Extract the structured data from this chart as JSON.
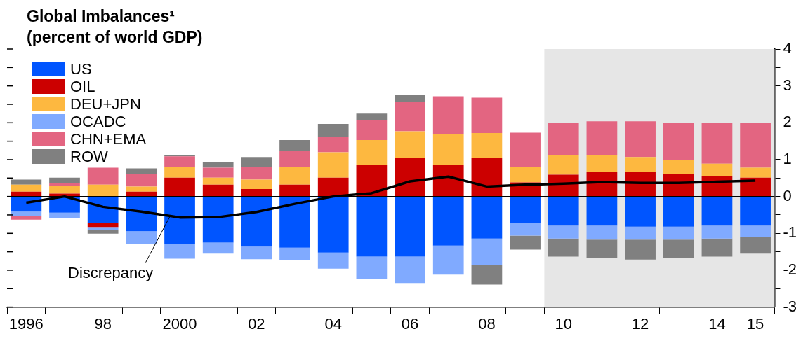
{
  "chart_data": {
    "type": "bar",
    "title": "Global Imbalances¹",
    "subtitle": "(percent of world GDP)",
    "categories": [
      "1996",
      null,
      "98",
      null,
      "2000",
      null,
      "02",
      null,
      "04",
      null,
      "06",
      null,
      "08",
      null,
      "10",
      null,
      "12",
      null,
      "14",
      "15"
    ],
    "stacked": true,
    "series": [
      {
        "name": "US",
        "color": "#0055ff",
        "values": [
          -0.41,
          -0.44,
          -0.72,
          -0.94,
          -1.28,
          -1.25,
          -1.36,
          -1.39,
          -1.52,
          -1.63,
          -1.63,
          -1.33,
          -1.14,
          -0.71,
          -0.79,
          -0.79,
          -0.82,
          -0.82,
          -0.79,
          -0.79
        ]
      },
      {
        "name": "OIL",
        "color": "#cc0000",
        "values": [
          0.13,
          0.08,
          -0.11,
          0.13,
          0.51,
          0.32,
          0.2,
          0.32,
          0.51,
          0.85,
          1.04,
          0.85,
          1.04,
          0.38,
          0.59,
          0.66,
          0.66,
          0.62,
          0.55,
          0.51
        ]
      },
      {
        "name": "DEU+JPN",
        "color": "#fdb840",
        "values": [
          0.19,
          0.2,
          0.32,
          0.14,
          0.3,
          0.19,
          0.26,
          0.49,
          0.69,
          0.68,
          0.73,
          0.84,
          0.68,
          0.43,
          0.53,
          0.46,
          0.41,
          0.38,
          0.34,
          0.27
        ]
      },
      {
        "name": "OCADC",
        "color": "#80aaff",
        "values": [
          -0.11,
          -0.15,
          -0.08,
          -0.34,
          -0.41,
          -0.3,
          -0.34,
          -0.34,
          -0.44,
          -0.6,
          -0.72,
          -0.79,
          -0.73,
          -0.35,
          -0.35,
          -0.38,
          -0.35,
          -0.35,
          -0.35,
          -0.3
        ]
      },
      {
        "name": "CHN+EMA",
        "color": "#e36581",
        "values": [
          -0.11,
          0.08,
          0.46,
          0.34,
          0.28,
          0.27,
          0.34,
          0.42,
          0.42,
          0.54,
          0.8,
          1.03,
          0.96,
          0.92,
          0.87,
          0.92,
          0.97,
          0.99,
          1.11,
          1.22
        ]
      },
      {
        "name": "ROW",
        "color": "#808080",
        "values": [
          0.14,
          0.15,
          -0.1,
          0.15,
          0.03,
          0.15,
          0.27,
          0.3,
          0.35,
          0.18,
          0.18,
          null,
          -0.52,
          -0.38,
          -0.49,
          -0.49,
          -0.54,
          -0.49,
          -0.49,
          -0.46
        ]
      },
      {
        "name": "Discrepancy",
        "type": "line",
        "color": "#000000",
        "values": [
          -0.17,
          0,
          -0.28,
          -0.41,
          -0.57,
          -0.56,
          -0.42,
          -0.2,
          0,
          0.09,
          0.41,
          0.54,
          0.27,
          0.32,
          0.35,
          0.39,
          0.37,
          0.37,
          0.4,
          0.43
        ]
      }
    ],
    "ylim": [
      -3,
      4
    ],
    "yticks": [
      -3,
      {
        "value": -2.5,
        "label": null
      },
      -2,
      {
        "value": -1.5,
        "label": null
      },
      -1,
      {
        "value": -0.5,
        "label": null
      },
      0,
      {
        "value": 0.5,
        "label": null
      },
      1,
      {
        "value": 1.5,
        "label": null
      },
      2,
      {
        "value": 2.5,
        "label": null
      },
      3,
      {
        "value": 3.5,
        "label": null
      },
      4
    ],
    "bands": [
      {
        "axis": "x",
        "from": "10",
        "to": "15",
        "color": "#e6e6e6"
      }
    ],
    "legend": "top left",
    "marker": "none",
    "line_style": "solid"
  }
}
